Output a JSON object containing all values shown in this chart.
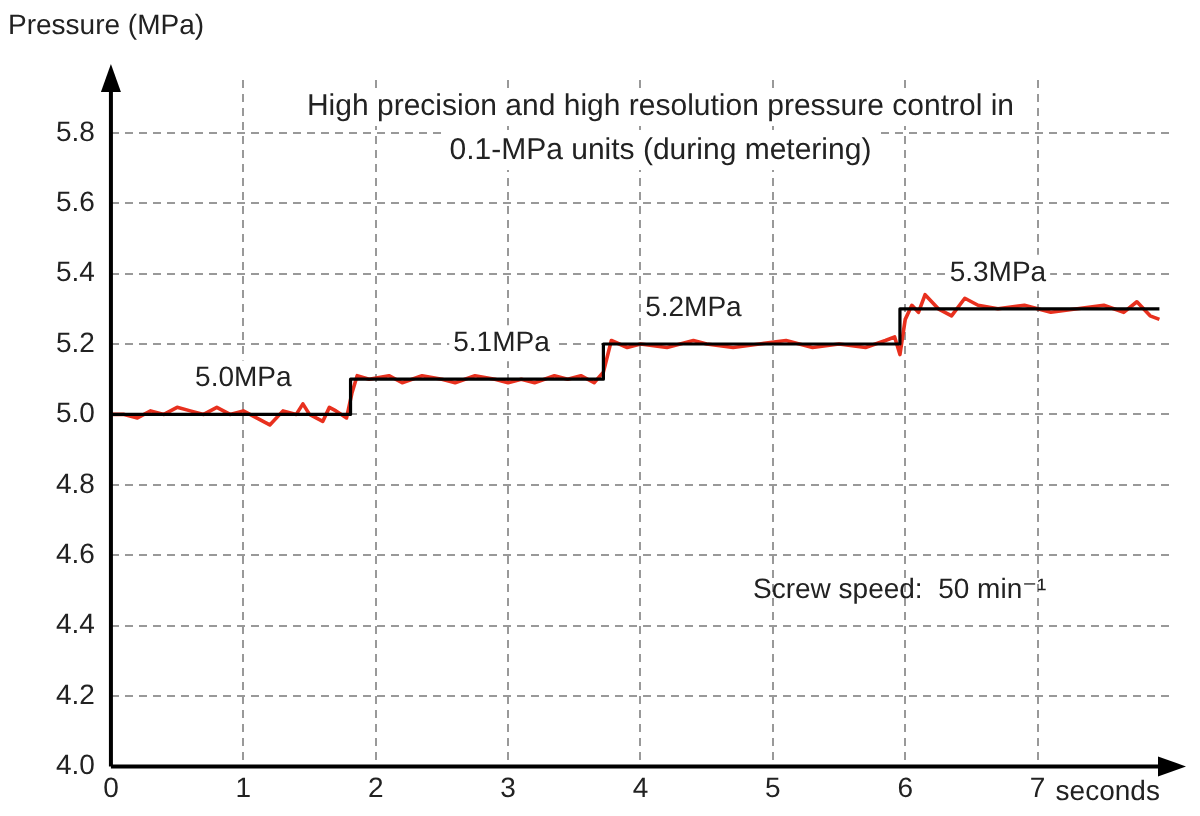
{
  "chart_data": {
    "type": "line",
    "title": "High precision and high resolution pressure control in 0.1-MPa units (during metering)",
    "xlabel": "seconds",
    "ylabel": "Pressure (MPa)",
    "xlim": [
      0,
      8
    ],
    "xticks": [
      0,
      1,
      2,
      3,
      4,
      5,
      6,
      7
    ],
    "ylim": [
      4.0,
      5.95
    ],
    "yticks": [
      {
        "value": 4.0,
        "label": "4.0"
      },
      {
        "value": 4.2,
        "label": "4.2"
      },
      {
        "value": 4.4,
        "label": "4.4"
      },
      {
        "value": 4.6,
        "label": "4.6"
      },
      {
        "value": 4.8,
        "label": "4.8"
      },
      {
        "value": 5.0,
        "label": "5.0"
      },
      {
        "value": 5.2,
        "label": "5.2"
      },
      {
        "value": 5.4,
        "label": "5.4"
      },
      {
        "value": 5.6,
        "label": "5.6"
      },
      {
        "value": 5.8,
        "label": "5.8"
      }
    ],
    "grid": true,
    "marker": "none",
    "line_style": "solid",
    "series": [
      {
        "type": "step",
        "color": "#000000",
        "x": [
          0,
          1.81,
          3.72,
          5.96,
          7.92
        ],
        "values": [
          5.0,
          5.1,
          5.2,
          5.3,
          5.3
        ]
      },
      {
        "type": "line",
        "color": "#e8301e",
        "x": [
          0,
          0.1,
          0.2,
          0.3,
          0.4,
          0.5,
          0.6,
          0.7,
          0.8,
          0.9,
          1.0,
          1.1,
          1.2,
          1.3,
          1.4,
          1.45,
          1.5,
          1.6,
          1.65,
          1.7,
          1.78,
          1.82,
          1.86,
          1.95,
          2.1,
          2.2,
          2.35,
          2.5,
          2.6,
          2.75,
          2.9,
          3.0,
          3.1,
          3.2,
          3.35,
          3.45,
          3.55,
          3.65,
          3.72,
          3.78,
          3.9,
          4.0,
          4.2,
          4.4,
          4.5,
          4.7,
          4.9,
          5.1,
          5.3,
          5.5,
          5.7,
          5.85,
          5.92,
          5.96,
          6.0,
          6.05,
          6.1,
          6.15,
          6.25,
          6.35,
          6.45,
          6.55,
          6.7,
          6.9,
          7.1,
          7.3,
          7.5,
          7.65,
          7.75,
          7.85,
          7.92
        ],
        "values": [
          5.0,
          5.0,
          4.99,
          5.01,
          5.0,
          5.02,
          5.01,
          5.0,
          5.02,
          5.0,
          5.01,
          4.99,
          4.97,
          5.01,
          5.0,
          5.03,
          5.0,
          4.98,
          5.02,
          5.01,
          4.99,
          5.06,
          5.11,
          5.1,
          5.11,
          5.09,
          5.11,
          5.1,
          5.09,
          5.11,
          5.1,
          5.09,
          5.1,
          5.09,
          5.11,
          5.1,
          5.11,
          5.09,
          5.12,
          5.21,
          5.19,
          5.2,
          5.19,
          5.21,
          5.2,
          5.19,
          5.2,
          5.21,
          5.19,
          5.2,
          5.19,
          5.21,
          5.22,
          5.17,
          5.27,
          5.31,
          5.29,
          5.34,
          5.3,
          5.28,
          5.33,
          5.31,
          5.3,
          5.31,
          5.29,
          5.3,
          5.31,
          5.29,
          5.32,
          5.28,
          5.27
        ]
      }
    ],
    "annotations": [
      {
        "text": "5.0MPa",
        "x": 1.0,
        "y": 5.0
      },
      {
        "text": "5.1MPa",
        "x": 2.95,
        "y": 5.1
      },
      {
        "text": "5.2MPa",
        "x": 4.4,
        "y": 5.2
      },
      {
        "text": "5.3MPa",
        "x": 6.7,
        "y": 5.3
      },
      "Screw speed:  50 min⁻¹"
    ]
  }
}
